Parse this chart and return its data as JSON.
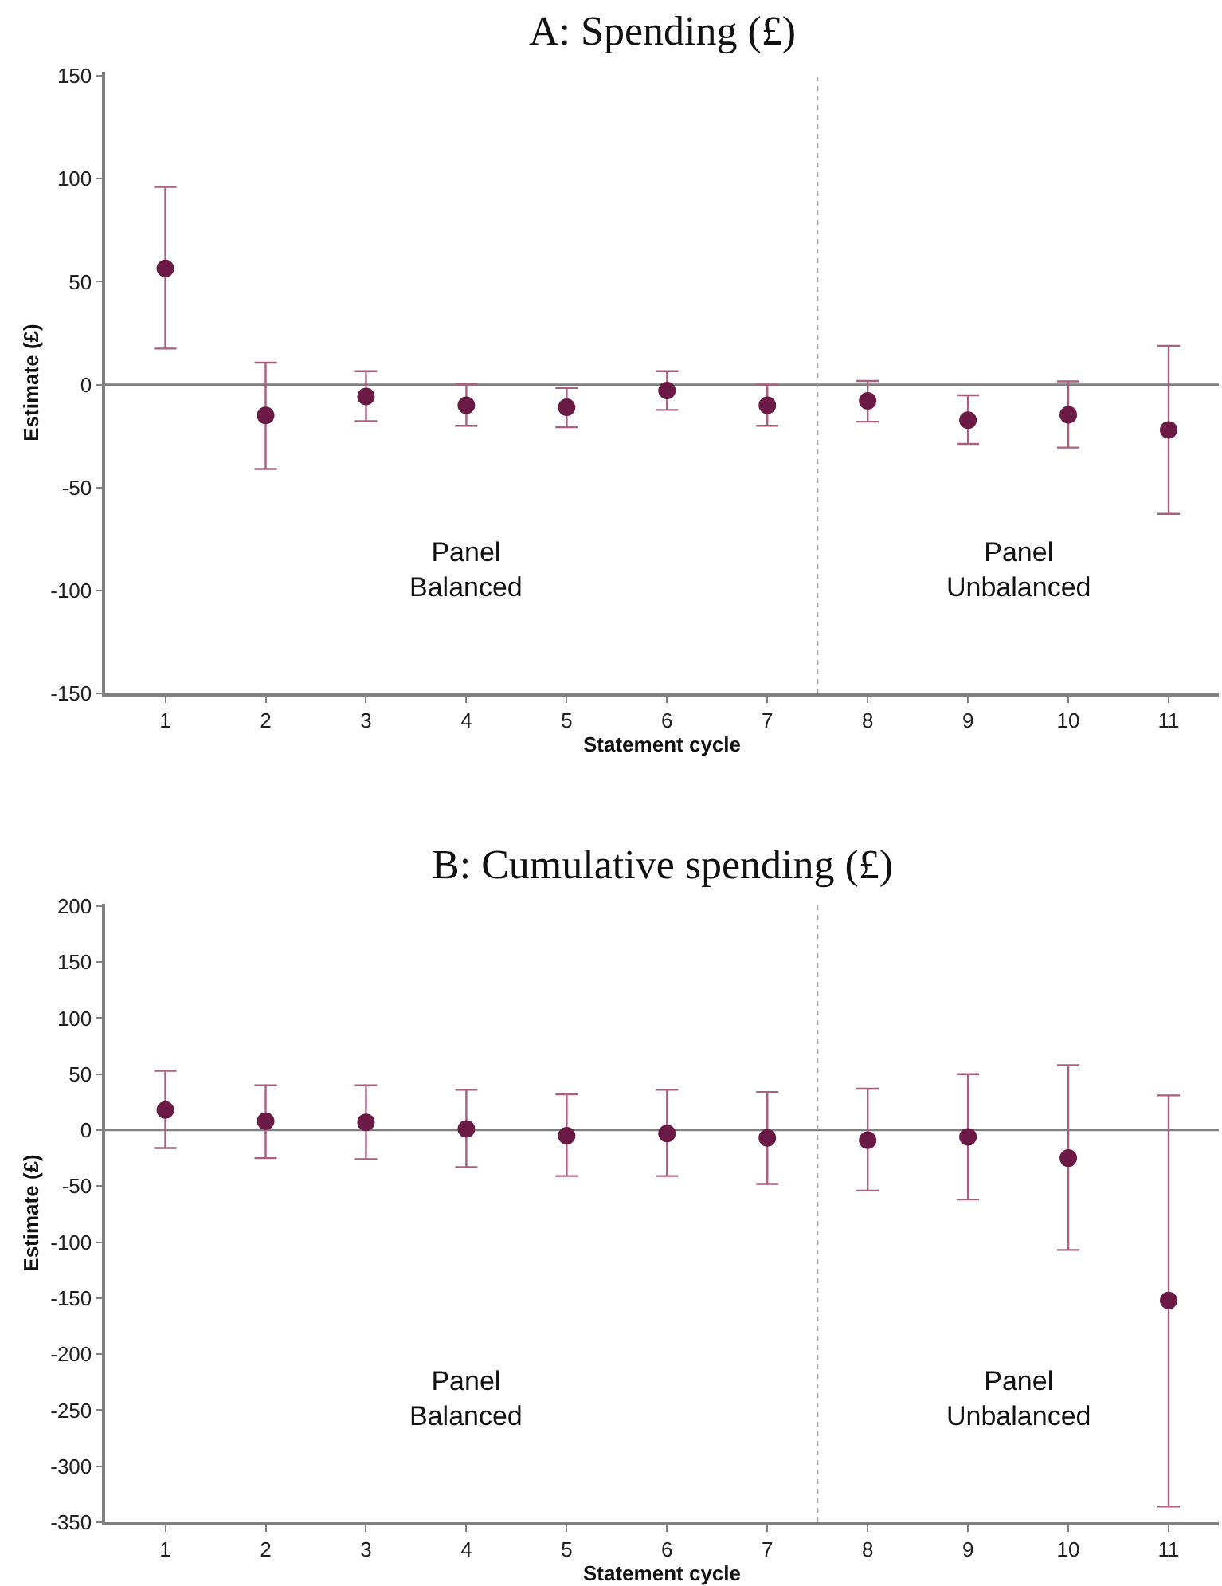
{
  "chart_data": [
    {
      "type": "scatter",
      "title": "A: Spending (£)",
      "xlabel": "Statement cycle",
      "ylabel": "Estimate (£)",
      "x": [
        1,
        2,
        3,
        4,
        5,
        6,
        7,
        8,
        9,
        10,
        11
      ],
      "series": [
        {
          "color": "#6b1a45",
          "values": [
            56.5,
            -15,
            -5.8,
            -10,
            -11,
            -2.9,
            -10,
            -7.9,
            -17.3,
            -14.7,
            -22
          ],
          "errors": [
            [
              17.5,
              96
            ],
            [
              -41,
              10.7
            ],
            [
              -17.8,
              6.5
            ],
            [
              -20,
              0.3
            ],
            [
              -20.7,
              -1.6
            ],
            [
              -12.3,
              6.5
            ],
            [
              -20,
              0
            ],
            [
              -18,
              1.8
            ],
            [
              -28.8,
              -5.2
            ],
            [
              -30.6,
              1.6
            ],
            [
              -62.8,
              18.8
            ]
          ]
        }
      ],
      "xlim": [
        0.4,
        11.5
      ],
      "xticks": [
        1,
        2,
        3,
        4,
        5,
        6,
        7,
        8,
        9,
        10,
        11
      ],
      "ylim": [
        -150,
        152
      ],
      "yticks": [
        -150,
        -100,
        -50,
        0,
        50,
        100,
        150
      ],
      "ref_lines": [
        {
          "axis": "y",
          "value": 0,
          "color": "#808080",
          "line_style": "solid"
        },
        {
          "axis": "x",
          "value": 7.5,
          "color": "#a0a0a0",
          "line_style": "dotted"
        }
      ],
      "annotations": [
        "Panel\nBalanced",
        "Panel\nUnbalanced"
      ],
      "marker": "circle",
      "grid": false
    },
    {
      "type": "scatter",
      "title": "B: Cumulative spending (£)",
      "xlabel": "Statement cycle",
      "ylabel": "Estimate (£)",
      "x": [
        1,
        2,
        3,
        4,
        5,
        6,
        7,
        8,
        9,
        10,
        11
      ],
      "series": [
        {
          "color": "#6b1a45",
          "values": [
            18,
            8,
            7,
            1,
            -5,
            -3,
            -7,
            -9,
            -6,
            -25,
            -152
          ],
          "errors": [
            [
              -16,
              53
            ],
            [
              -25,
              40
            ],
            [
              -26,
              40
            ],
            [
              -33,
              36
            ],
            [
              -41,
              32
            ],
            [
              -41,
              36
            ],
            [
              -48,
              34
            ],
            [
              -54,
              37
            ],
            [
              -62,
              50
            ],
            [
              -107,
              58
            ],
            [
              -336,
              31
            ]
          ]
        }
      ],
      "xlim": [
        0.4,
        11.5
      ],
      "xticks": [
        1,
        2,
        3,
        4,
        5,
        6,
        7,
        8,
        9,
        10,
        11
      ],
      "ylim": [
        -350,
        202
      ],
      "yticks": [
        -350,
        -300,
        -250,
        -200,
        -150,
        -100,
        -50,
        0,
        50,
        100,
        150,
        200
      ],
      "ref_lines": [
        {
          "axis": "y",
          "value": 0,
          "color": "#808080",
          "line_style": "solid"
        },
        {
          "axis": "x",
          "value": 7.5,
          "color": "#a0a0a0",
          "line_style": "dotted"
        }
      ],
      "annotations": [
        "Panel\nBalanced",
        "Panel\nUnbalanced"
      ],
      "marker": "circle",
      "grid": false
    }
  ]
}
